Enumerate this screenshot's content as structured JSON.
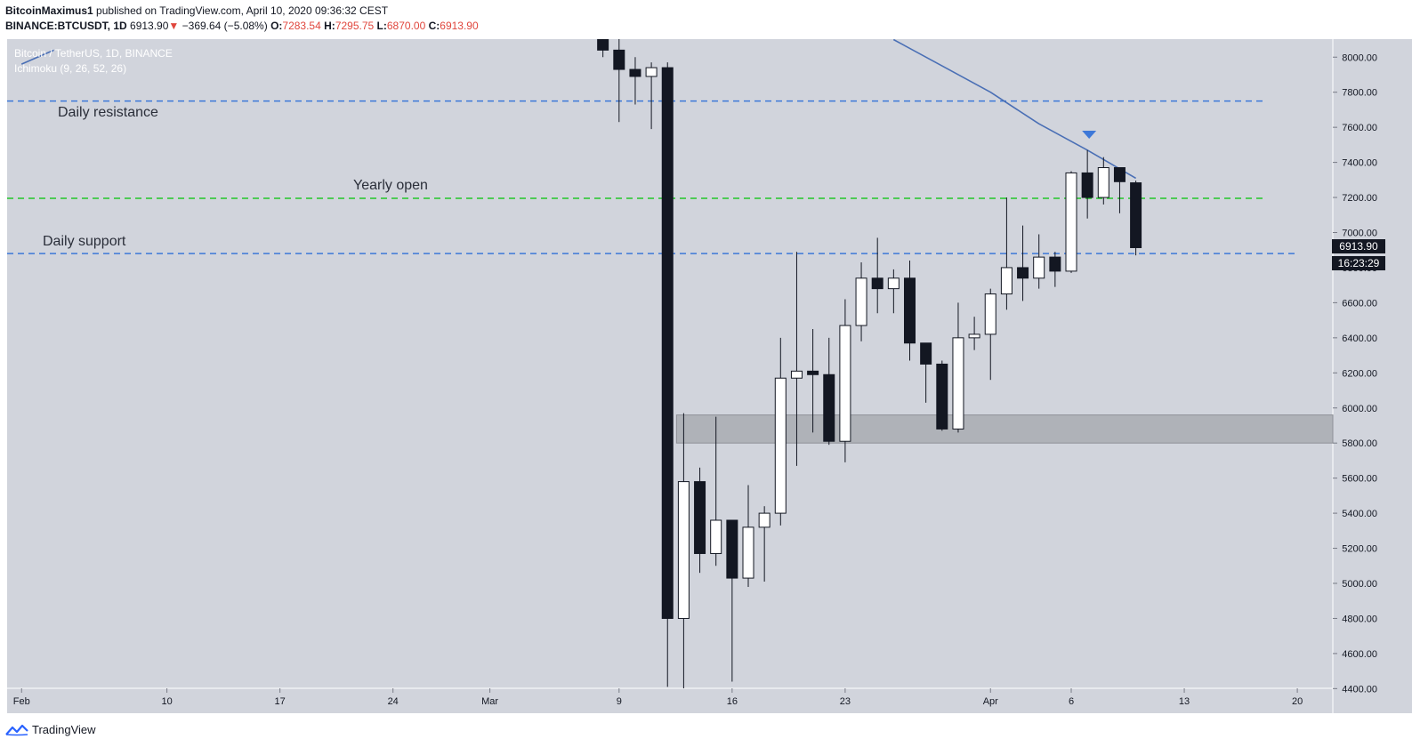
{
  "header": {
    "author": "BitcoinMaximus1",
    "published_text": "published on TradingView.com, April 10, 2020 09:36:32 CEST",
    "symbol": "BINANCE:BTCUSDT, 1D",
    "last": "6913.90",
    "change": "−369.64 (−5.08%)",
    "o_label": "O:",
    "o": "7283.54",
    "h_label": "H:",
    "h": "7295.75",
    "l_label": "L:",
    "l": "6870.00",
    "c_label": "C:",
    "c": "6913.90"
  },
  "legend": {
    "title": "Bitcoin / TetherUS, 1D, BINANCE",
    "indicator": "Ichimoku (9, 26, 52, 26)"
  },
  "price_badge": "6913.90",
  "countdown_badge": "16:23:29",
  "footer": {
    "brand": "TradingView"
  },
  "colors": {
    "background": "#d1d4dc",
    "candle_up": "#ffffff",
    "candle_down": "#131722",
    "resistance_support": "#3d78d8",
    "yearly_open": "#22c62a",
    "ichimoku_line": "#4a6fb5",
    "zone": "#a9abb2"
  },
  "chart_data": {
    "type": "candlestick",
    "title": "Bitcoin / TetherUS, 1D, BINANCE",
    "ylim": [
      4400,
      8100
    ],
    "y_ticks": [
      4400,
      4600,
      4800,
      5000,
      5200,
      5400,
      5600,
      5800,
      6000,
      6200,
      6400,
      6600,
      6800,
      7000,
      7200,
      7400,
      7600,
      7800,
      8000
    ],
    "y_tick_labels": [
      "4400.00",
      "4600.00",
      "4800.00",
      "5000.00",
      "5200.00",
      "5400.00",
      "5600.00",
      "5800.00",
      "6000.00",
      "6200.00",
      "6400.00",
      "6600.00",
      "6800.00",
      "7000.00",
      "7200.00",
      "7400.00",
      "7600.00",
      "7800.00",
      "8000.00"
    ],
    "x_ticks": [
      {
        "label": "Feb",
        "date": "2020-02-01"
      },
      {
        "label": "10",
        "date": "2020-02-10"
      },
      {
        "label": "17",
        "date": "2020-02-17"
      },
      {
        "label": "24",
        "date": "2020-02-24"
      },
      {
        "label": "Mar",
        "date": "2020-03-01"
      },
      {
        "label": "9",
        "date": "2020-03-09"
      },
      {
        "label": "16",
        "date": "2020-03-16"
      },
      {
        "label": "23",
        "date": "2020-03-23"
      },
      {
        "label": "Apr",
        "date": "2020-04-01"
      },
      {
        "label": "6",
        "date": "2020-04-06"
      },
      {
        "label": "13",
        "date": "2020-04-13"
      },
      {
        "label": "20",
        "date": "2020-04-20"
      }
    ],
    "candles": [
      {
        "date": "2020-03-08",
        "o": 8100,
        "h": 8180,
        "l": 8000,
        "c": 8040
      },
      {
        "date": "2020-03-09",
        "o": 8040,
        "h": 8180,
        "l": 7630,
        "c": 7930
      },
      {
        "date": "2020-03-10",
        "o": 7930,
        "h": 8000,
        "l": 7730,
        "c": 7890
      },
      {
        "date": "2020-03-11",
        "o": 7890,
        "h": 7970,
        "l": 7590,
        "c": 7940
      },
      {
        "date": "2020-03-12",
        "o": 7940,
        "h": 7970,
        "l": 4410,
        "c": 4800
      },
      {
        "date": "2020-03-13",
        "o": 4800,
        "h": 5970,
        "l": 4400,
        "c": 5580
      },
      {
        "date": "2020-03-14",
        "o": 5580,
        "h": 5660,
        "l": 5060,
        "c": 5170
      },
      {
        "date": "2020-03-15",
        "o": 5170,
        "h": 5950,
        "l": 5100,
        "c": 5360
      },
      {
        "date": "2020-03-16",
        "o": 5360,
        "h": 5360,
        "l": 4440,
        "c": 5030
      },
      {
        "date": "2020-03-17",
        "o": 5030,
        "h": 5560,
        "l": 4980,
        "c": 5320
      },
      {
        "date": "2020-03-18",
        "o": 5320,
        "h": 5440,
        "l": 5010,
        "c": 5400
      },
      {
        "date": "2020-03-19",
        "o": 5400,
        "h": 6400,
        "l": 5330,
        "c": 6170
      },
      {
        "date": "2020-03-20",
        "o": 6170,
        "h": 6890,
        "l": 5670,
        "c": 6210
      },
      {
        "date": "2020-03-21",
        "o": 6210,
        "h": 6450,
        "l": 5860,
        "c": 6190
      },
      {
        "date": "2020-03-22",
        "o": 6190,
        "h": 6400,
        "l": 5790,
        "c": 5810
      },
      {
        "date": "2020-03-23",
        "o": 5810,
        "h": 6620,
        "l": 5690,
        "c": 6470
      },
      {
        "date": "2020-03-24",
        "o": 6470,
        "h": 6830,
        "l": 6380,
        "c": 6740
      },
      {
        "date": "2020-03-25",
        "o": 6740,
        "h": 6970,
        "l": 6540,
        "c": 6680
      },
      {
        "date": "2020-03-26",
        "o": 6680,
        "h": 6790,
        "l": 6540,
        "c": 6740
      },
      {
        "date": "2020-03-27",
        "o": 6740,
        "h": 6840,
        "l": 6270,
        "c": 6370
      },
      {
        "date": "2020-03-28",
        "o": 6370,
        "h": 6370,
        "l": 6030,
        "c": 6250
      },
      {
        "date": "2020-03-29",
        "o": 6250,
        "h": 6270,
        "l": 5870,
        "c": 5880
      },
      {
        "date": "2020-03-30",
        "o": 5880,
        "h": 6600,
        "l": 5860,
        "c": 6400
      },
      {
        "date": "2020-03-31",
        "o": 6400,
        "h": 6520,
        "l": 6330,
        "c": 6420
      },
      {
        "date": "2020-04-01",
        "o": 6420,
        "h": 6680,
        "l": 6160,
        "c": 6650
      },
      {
        "date": "2020-04-02",
        "o": 6650,
        "h": 7200,
        "l": 6560,
        "c": 6800
      },
      {
        "date": "2020-04-03",
        "o": 6800,
        "h": 7040,
        "l": 6610,
        "c": 6740
      },
      {
        "date": "2020-04-04",
        "o": 6740,
        "h": 6990,
        "l": 6680,
        "c": 6860
      },
      {
        "date": "2020-04-05",
        "o": 6860,
        "h": 6890,
        "l": 6690,
        "c": 6780
      },
      {
        "date": "2020-04-06",
        "o": 6780,
        "h": 7350,
        "l": 6770,
        "c": 7340
      },
      {
        "date": "2020-04-07",
        "o": 7340,
        "h": 7470,
        "l": 7080,
        "c": 7200
      },
      {
        "date": "2020-04-08",
        "o": 7200,
        "h": 7430,
        "l": 7160,
        "c": 7370
      },
      {
        "date": "2020-04-09",
        "o": 7370,
        "h": 7370,
        "l": 7110,
        "c": 7290
      },
      {
        "date": "2020-04-10",
        "o": 7283.54,
        "h": 7295.75,
        "l": 6870,
        "c": 6913.9
      }
    ],
    "ichimoku_line": [
      {
        "date": "2020-02-01",
        "v": 7960
      },
      {
        "date": "2020-02-03",
        "v": 8040
      },
      {
        "date": "2020-03-26",
        "v": 8100
      },
      {
        "date": "2020-03-29",
        "v": 7950
      },
      {
        "date": "2020-04-01",
        "v": 7800
      },
      {
        "date": "2020-04-04",
        "v": 7620
      },
      {
        "date": "2020-04-07",
        "v": 7470
      },
      {
        "date": "2020-04-10",
        "v": 7310
      }
    ],
    "horizontal_lines": [
      {
        "label": "Daily resistance",
        "price": 7750,
        "from": "2020-02-01",
        "to": "2020-04-18",
        "color": "#3d78d8"
      },
      {
        "label": "Yearly open",
        "price": 7195,
        "from": "2020-02-01",
        "to": "2020-04-18",
        "color": "#22c62a"
      },
      {
        "label": "Daily support",
        "price": 6880,
        "from": "2020-02-01",
        "to": "2020-04-20",
        "color": "#3d78d8"
      }
    ],
    "zone": {
      "from": "2020-03-13",
      "to": "2020-04-22",
      "price_low": 5800,
      "price_high": 5960
    },
    "marker": {
      "date": "2020-04-07",
      "price": 7560,
      "shape": "triangle-down"
    }
  }
}
